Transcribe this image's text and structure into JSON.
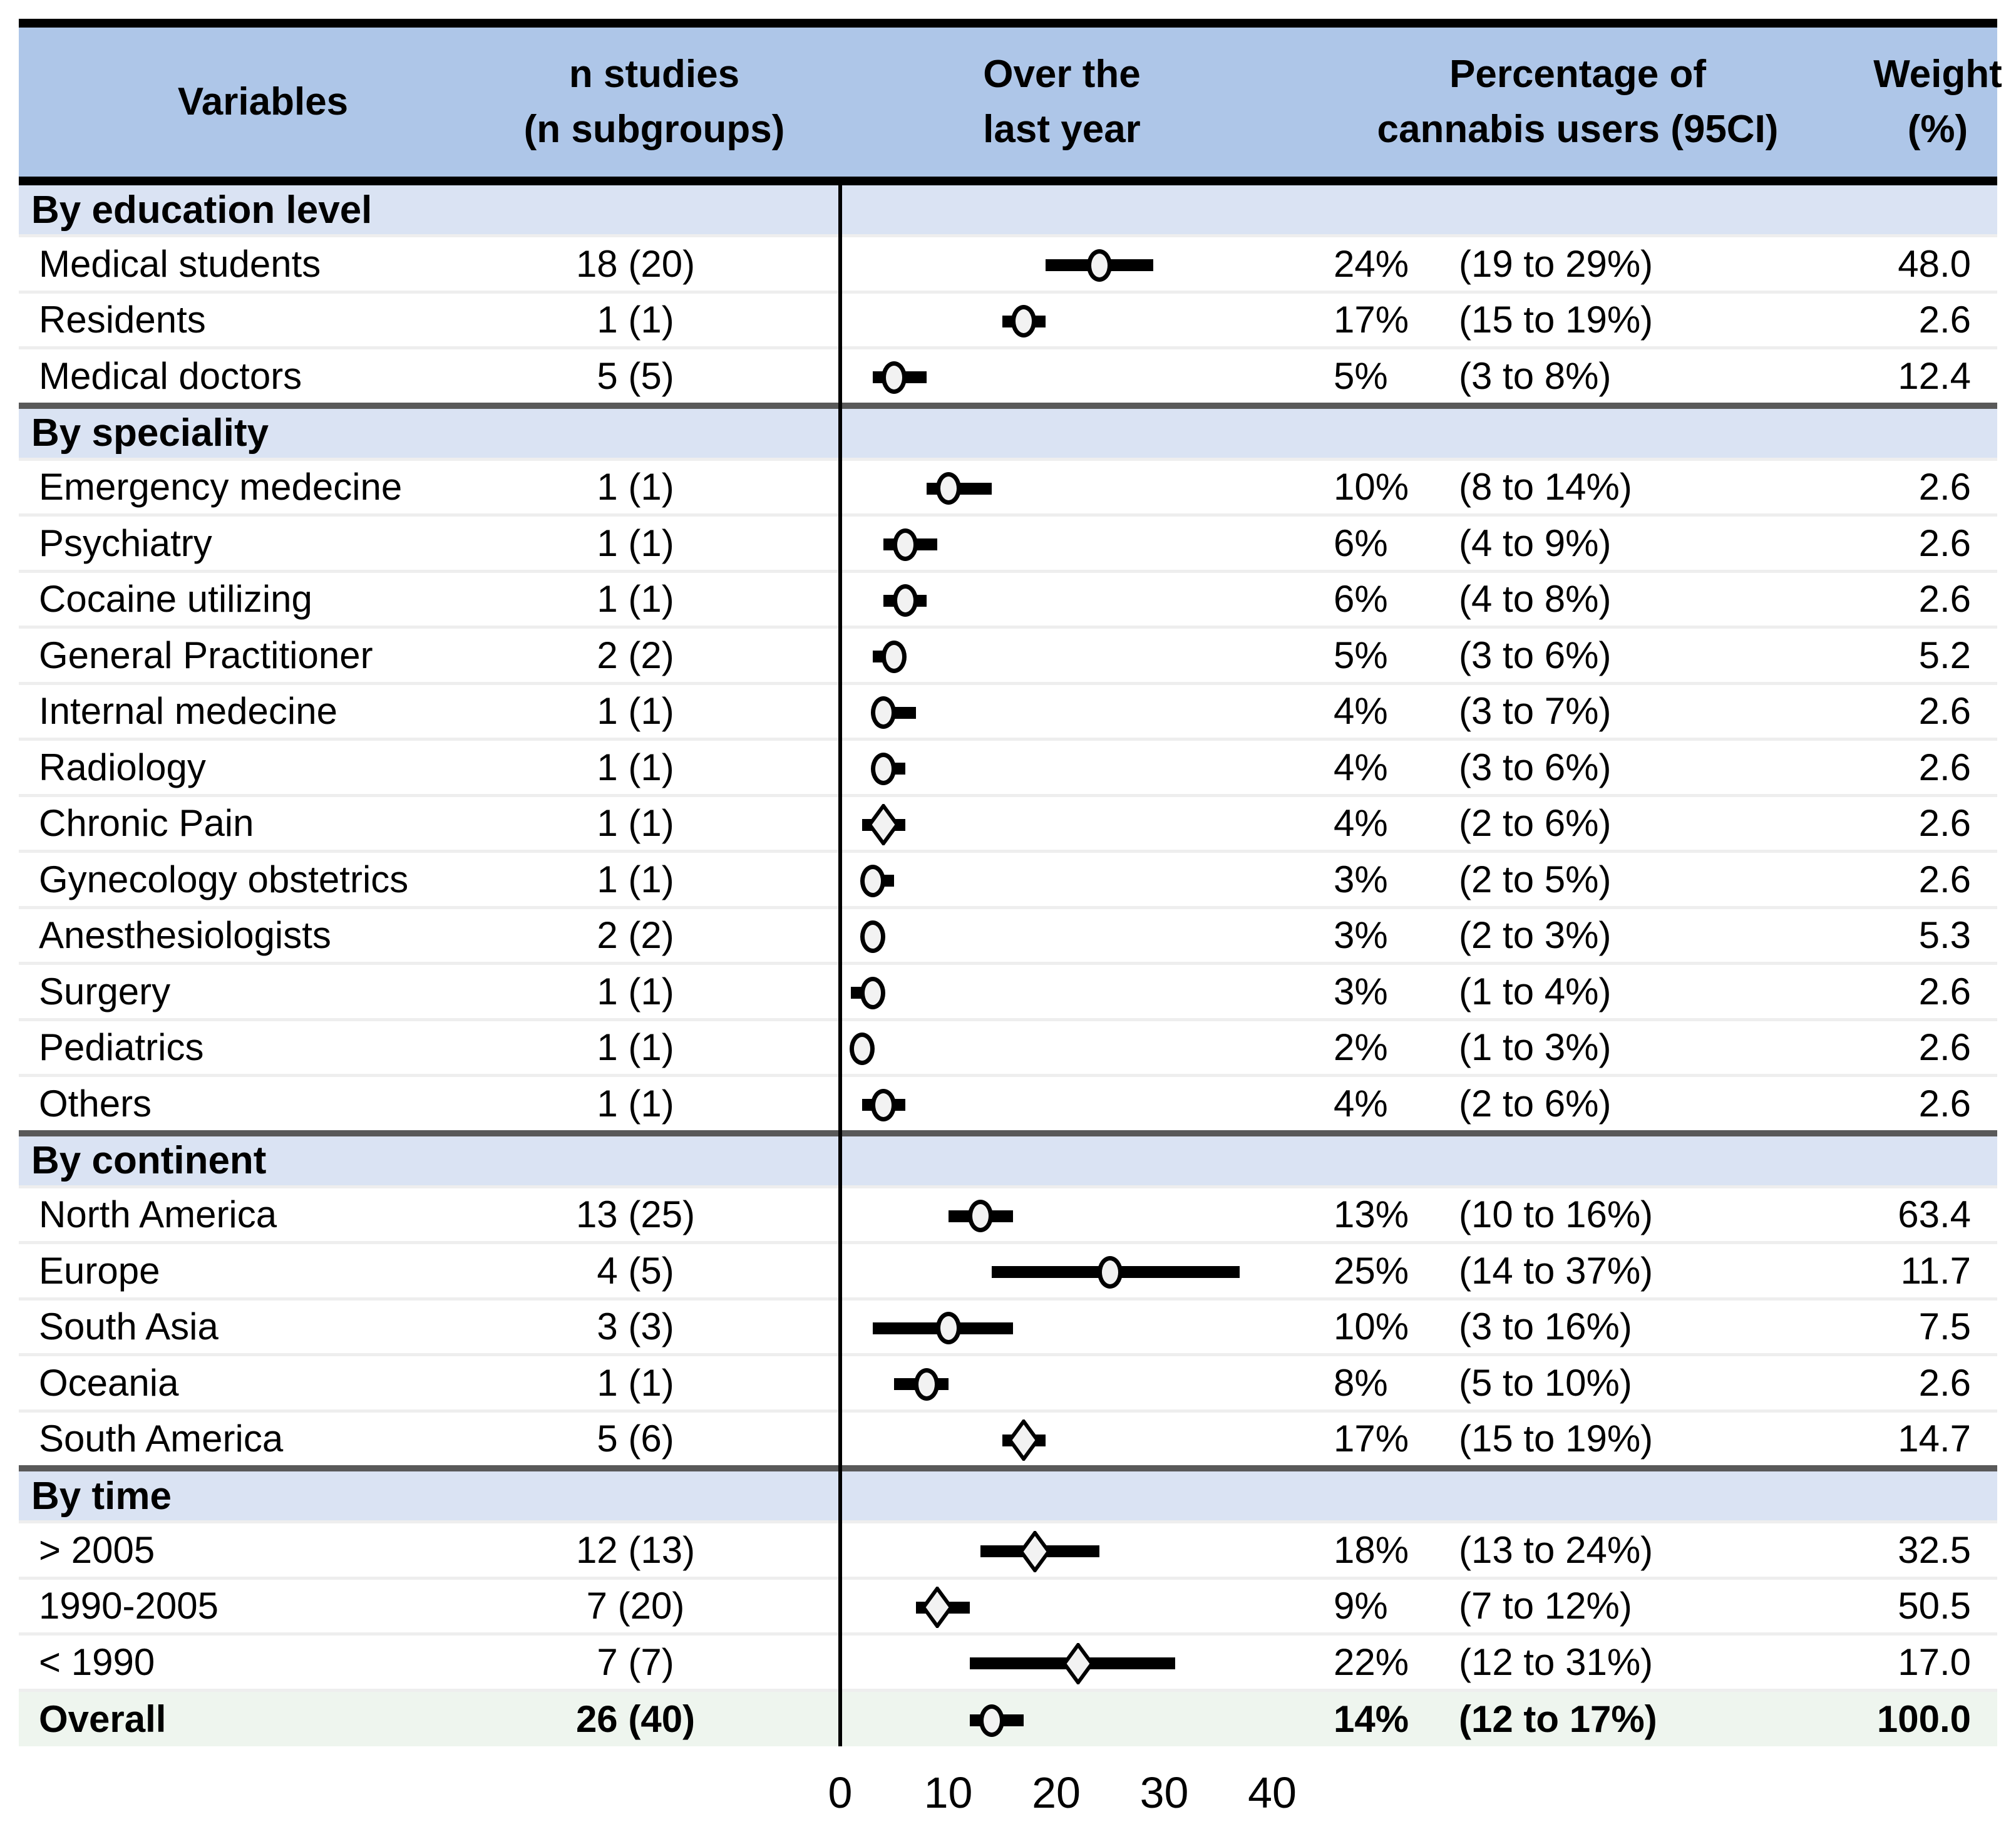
{
  "header": {
    "variables": "Variables",
    "n_studies": [
      "n studies",
      "(n subgroups)"
    ],
    "plot": [
      "Over the",
      "last year"
    ],
    "percentage": [
      "Percentage of",
      "cannabis users (95CI)"
    ],
    "weight": [
      "Weight",
      "(%)"
    ]
  },
  "colors": {
    "header_bg": "#aec6e8",
    "section_bg": "#dae3f3",
    "overall_bg": "#eef5ee",
    "divider_dark": "#595959",
    "row_separator": "#eeeeee",
    "marker_fill": "#f2f2f2",
    "axis_line": "#000000"
  },
  "chart_data": {
    "type": "forest",
    "x_axis": {
      "min": 0,
      "max": 40,
      "ticks": [
        0,
        10,
        20,
        30,
        40
      ],
      "tick_labels": [
        "0",
        "10",
        "20",
        "30",
        "40"
      ]
    },
    "sections": [
      {
        "label": "By education level",
        "rows": [
          {
            "label": "Medical students",
            "n": "18 (20)",
            "mean": 24,
            "ci_low": 19,
            "ci_high": 29,
            "pct": "24%",
            "ci": "(19 to 29%)",
            "weight": "48.0",
            "marker": "circle"
          },
          {
            "label": "Residents",
            "n": "1 (1)",
            "mean": 17,
            "ci_low": 15,
            "ci_high": 19,
            "pct": "17%",
            "ci": "(15 to 19%)",
            "weight": "2.6",
            "marker": "circle"
          },
          {
            "label": "Medical doctors",
            "n": "5 (5)",
            "mean": 5,
            "ci_low": 3,
            "ci_high": 8,
            "pct": "5%",
            "ci": "(3 to 8%)",
            "weight": "12.4",
            "marker": "circle"
          }
        ]
      },
      {
        "label": "By speciality",
        "rows": [
          {
            "label": "Emergency medecine",
            "n": "1 (1)",
            "mean": 10,
            "ci_low": 8,
            "ci_high": 14,
            "pct": "10%",
            "ci": "(8 to 14%)",
            "weight": "2.6",
            "marker": "circle"
          },
          {
            "label": "Psychiatry",
            "n": "1 (1)",
            "mean": 6,
            "ci_low": 4,
            "ci_high": 9,
            "pct": "6%",
            "ci": "(4 to 9%)",
            "weight": "2.6",
            "marker": "circle"
          },
          {
            "label": "Cocaine utilizing",
            "n": "1 (1)",
            "mean": 6,
            "ci_low": 4,
            "ci_high": 8,
            "pct": "6%",
            "ci": "(4 to 8%)",
            "weight": "2.6",
            "marker": "circle"
          },
          {
            "label": "General Practitioner",
            "n": "2 (2)",
            "mean": 5,
            "ci_low": 3,
            "ci_high": 6,
            "pct": "5%",
            "ci": "(3 to 6%)",
            "weight": "5.2",
            "marker": "circle"
          },
          {
            "label": "Internal medecine",
            "n": "1 (1)",
            "mean": 4,
            "ci_low": 3,
            "ci_high": 7,
            "pct": "4%",
            "ci": "(3 to 7%)",
            "weight": "2.6",
            "marker": "circle"
          },
          {
            "label": "Radiology",
            "n": "1 (1)",
            "mean": 4,
            "ci_low": 3,
            "ci_high": 6,
            "pct": "4%",
            "ci": "(3 to 6%)",
            "weight": "2.6",
            "marker": "circle"
          },
          {
            "label": "Chronic Pain",
            "n": "1 (1)",
            "mean": 4,
            "ci_low": 2,
            "ci_high": 6,
            "pct": "4%",
            "ci": "(2 to 6%)",
            "weight": "2.6",
            "marker": "diamond"
          },
          {
            "label": "Gynecology obstetrics",
            "n": "1 (1)",
            "mean": 3,
            "ci_low": 2,
            "ci_high": 5,
            "pct": "3%",
            "ci": "(2 to 5%)",
            "weight": "2.6",
            "marker": "circle"
          },
          {
            "label": "Anesthesiologists",
            "n": "2 (2)",
            "mean": 3,
            "ci_low": 2,
            "ci_high": 3,
            "pct": "3%",
            "ci": "(2 to 3%)",
            "weight": "5.3",
            "marker": "circle"
          },
          {
            "label": "Surgery",
            "n": "1 (1)",
            "mean": 3,
            "ci_low": 1,
            "ci_high": 4,
            "pct": "3%",
            "ci": "(1 to 4%)",
            "weight": "2.6",
            "marker": "circle"
          },
          {
            "label": "Pediatrics",
            "n": "1 (1)",
            "mean": 2,
            "ci_low": 1,
            "ci_high": 3,
            "pct": "2%",
            "ci": "(1 to 3%)",
            "weight": "2.6",
            "marker": "circle"
          },
          {
            "label": "Others",
            "n": "1 (1)",
            "mean": 4,
            "ci_low": 2,
            "ci_high": 6,
            "pct": "4%",
            "ci": "(2 to 6%)",
            "weight": "2.6",
            "marker": "circle"
          }
        ]
      },
      {
        "label": "By continent",
        "rows": [
          {
            "label": "North America",
            "n": "13 (25)",
            "mean": 13,
            "ci_low": 10,
            "ci_high": 16,
            "pct": "13%",
            "ci": "(10 to 16%)",
            "weight": "63.4",
            "marker": "circle"
          },
          {
            "label": "Europe",
            "n": "4 (5)",
            "mean": 25,
            "ci_low": 14,
            "ci_high": 37,
            "pct": "25%",
            "ci": "(14 to 37%)",
            "weight": "11.7",
            "marker": "circle"
          },
          {
            "label": "South Asia",
            "n": "3 (3)",
            "mean": 10,
            "ci_low": 3,
            "ci_high": 16,
            "pct": "10%",
            "ci": "(3 to 16%)",
            "weight": "7.5",
            "marker": "circle"
          },
          {
            "label": "Oceania",
            "n": "1 (1)",
            "mean": 8,
            "ci_low": 5,
            "ci_high": 10,
            "pct": "8%",
            "ci": "(5 to 10%)",
            "weight": "2.6",
            "marker": "circle"
          },
          {
            "label": "South America",
            "n": "5 (6)",
            "mean": 17,
            "ci_low": 15,
            "ci_high": 19,
            "pct": "17%",
            "ci": "(15 to 19%)",
            "weight": "14.7",
            "marker": "diamond"
          }
        ]
      },
      {
        "label": "By time",
        "rows": [
          {
            "label": "> 2005",
            "n": "12 (13)",
            "mean": 18,
            "ci_low": 13,
            "ci_high": 24,
            "pct": "18%",
            "ci": "(13 to 24%)",
            "weight": "32.5",
            "marker": "diamond"
          },
          {
            "label": "1990-2005",
            "n": "7 (20)",
            "mean": 9,
            "ci_low": 7,
            "ci_high": 12,
            "pct": "9%",
            "ci": "(7 to 12%)",
            "weight": "50.5",
            "marker": "diamond"
          },
          {
            "label": "< 1990",
            "n": "7 (7)",
            "mean": 22,
            "ci_low": 12,
            "ci_high": 31,
            "pct": "22%",
            "ci": "(12 to 31%)",
            "weight": "17.0",
            "marker": "diamond"
          }
        ]
      }
    ],
    "overall": {
      "label": "Overall",
      "n": "26 (40)",
      "mean": 14,
      "ci_low": 12,
      "ci_high": 17,
      "pct": "14%",
      "ci": "(12 to 17%)",
      "weight": "100.0",
      "marker": "circle"
    }
  }
}
